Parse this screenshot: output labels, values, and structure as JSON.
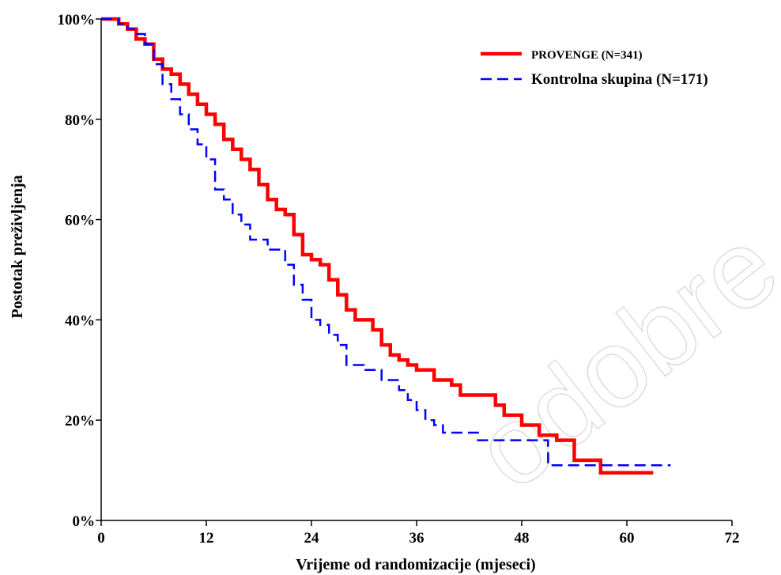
{
  "watermark": "odobre",
  "chart_data": {
    "type": "line",
    "xlabel": "Vrijeme od randomizacije (mjeseci)",
    "ylabel": "Postotak preživljenja",
    "xlim": [
      0,
      72
    ],
    "ylim": [
      0,
      100
    ],
    "x_ticks": [
      0,
      12,
      24,
      36,
      48,
      60,
      72
    ],
    "x_tick_labels": [
      "0",
      "12",
      "24",
      "36",
      "48",
      "60",
      "72"
    ],
    "y_ticks": [
      0,
      20,
      40,
      60,
      80,
      100
    ],
    "y_tick_labels": [
      "0%",
      "20%",
      "40%",
      "60%",
      "80%",
      "100%"
    ],
    "grid": false,
    "legend_position": "top-right",
    "series": [
      {
        "name": "PROVENGE (N=341)",
        "color": "#ff0000",
        "style": "solid-step",
        "points": [
          [
            0,
            100
          ],
          [
            2,
            100
          ],
          [
            2,
            99
          ],
          [
            3,
            99
          ],
          [
            3,
            98
          ],
          [
            4,
            98
          ],
          [
            4,
            96
          ],
          [
            5,
            96
          ],
          [
            5,
            95
          ],
          [
            6,
            95
          ],
          [
            6,
            92
          ],
          [
            7,
            92
          ],
          [
            7,
            90
          ],
          [
            8,
            90
          ],
          [
            8,
            89
          ],
          [
            9,
            89
          ],
          [
            9,
            87
          ],
          [
            10,
            87
          ],
          [
            10,
            85
          ],
          [
            11,
            85
          ],
          [
            11,
            83
          ],
          [
            12,
            83
          ],
          [
            12,
            81
          ],
          [
            13,
            81
          ],
          [
            13,
            79
          ],
          [
            14,
            79
          ],
          [
            14,
            76
          ],
          [
            15,
            76
          ],
          [
            15,
            74
          ],
          [
            16,
            74
          ],
          [
            16,
            72
          ],
          [
            17,
            72
          ],
          [
            17,
            70
          ],
          [
            18,
            70
          ],
          [
            18,
            67
          ],
          [
            19,
            67
          ],
          [
            19,
            64
          ],
          [
            20,
            64
          ],
          [
            20,
            62
          ],
          [
            21,
            62
          ],
          [
            21,
            61
          ],
          [
            22,
            61
          ],
          [
            22,
            57
          ],
          [
            23,
            57
          ],
          [
            23,
            53
          ],
          [
            24,
            53
          ],
          [
            24,
            52
          ],
          [
            25,
            52
          ],
          [
            25,
            51
          ],
          [
            26,
            51
          ],
          [
            26,
            48
          ],
          [
            27,
            48
          ],
          [
            27,
            45
          ],
          [
            28,
            45
          ],
          [
            28,
            42
          ],
          [
            29,
            42
          ],
          [
            29,
            40
          ],
          [
            31,
            40
          ],
          [
            31,
            38
          ],
          [
            32,
            38
          ],
          [
            32,
            35
          ],
          [
            33,
            35
          ],
          [
            33,
            33
          ],
          [
            34,
            33
          ],
          [
            34,
            32
          ],
          [
            35,
            32
          ],
          [
            35,
            31
          ],
          [
            36,
            31
          ],
          [
            36,
            30
          ],
          [
            38,
            30
          ],
          [
            38,
            28
          ],
          [
            40,
            28
          ],
          [
            40,
            27
          ],
          [
            41,
            27
          ],
          [
            41,
            25
          ],
          [
            45,
            25
          ],
          [
            45,
            23
          ],
          [
            46,
            23
          ],
          [
            46,
            21
          ],
          [
            48,
            21
          ],
          [
            48,
            19
          ],
          [
            50,
            19
          ],
          [
            50,
            17
          ],
          [
            52,
            17
          ],
          [
            52,
            16
          ],
          [
            54,
            16
          ],
          [
            54,
            12
          ],
          [
            57,
            12
          ],
          [
            57,
            9.5
          ],
          [
            63,
            9.5
          ]
        ]
      },
      {
        "name": "Kontrolna skupina (N=171)",
        "color": "#0000ff",
        "style": "dashed-step",
        "points": [
          [
            0,
            100
          ],
          [
            2,
            100
          ],
          [
            2,
            99
          ],
          [
            3,
            99
          ],
          [
            3,
            98
          ],
          [
            4,
            98
          ],
          [
            4,
            97
          ],
          [
            5,
            97
          ],
          [
            5,
            95
          ],
          [
            6,
            95
          ],
          [
            6,
            91
          ],
          [
            7,
            91
          ],
          [
            7,
            87
          ],
          [
            8,
            87
          ],
          [
            8,
            84
          ],
          [
            9,
            84
          ],
          [
            9,
            81
          ],
          [
            10,
            81
          ],
          [
            10,
            78
          ],
          [
            11,
            78
          ],
          [
            11,
            75
          ],
          [
            12,
            75
          ],
          [
            12,
            72
          ],
          [
            13,
            72
          ],
          [
            13,
            66
          ],
          [
            14,
            66
          ],
          [
            14,
            64
          ],
          [
            15,
            64
          ],
          [
            15,
            61
          ],
          [
            16,
            61
          ],
          [
            16,
            59
          ],
          [
            17,
            59
          ],
          [
            17,
            56
          ],
          [
            19,
            56
          ],
          [
            19,
            54
          ],
          [
            21,
            54
          ],
          [
            21,
            51
          ],
          [
            22,
            51
          ],
          [
            22,
            47
          ],
          [
            23,
            47
          ],
          [
            23,
            44
          ],
          [
            24,
            44
          ],
          [
            24,
            40
          ],
          [
            25,
            40
          ],
          [
            25,
            39
          ],
          [
            26,
            39
          ],
          [
            26,
            37
          ],
          [
            27,
            37
          ],
          [
            27,
            35
          ],
          [
            28,
            35
          ],
          [
            28,
            31
          ],
          [
            30,
            31
          ],
          [
            30,
            30
          ],
          [
            32,
            30
          ],
          [
            32,
            28
          ],
          [
            34,
            28
          ],
          [
            34,
            26
          ],
          [
            35,
            26
          ],
          [
            35,
            24
          ],
          [
            36,
            24
          ],
          [
            36,
            22
          ],
          [
            37,
            22
          ],
          [
            37,
            20
          ],
          [
            38,
            20
          ],
          [
            38,
            19
          ],
          [
            39,
            19
          ],
          [
            39,
            17.5
          ],
          [
            43,
            17.5
          ],
          [
            43,
            16
          ],
          [
            51,
            16
          ],
          [
            51,
            11
          ],
          [
            65,
            11
          ]
        ]
      }
    ]
  }
}
